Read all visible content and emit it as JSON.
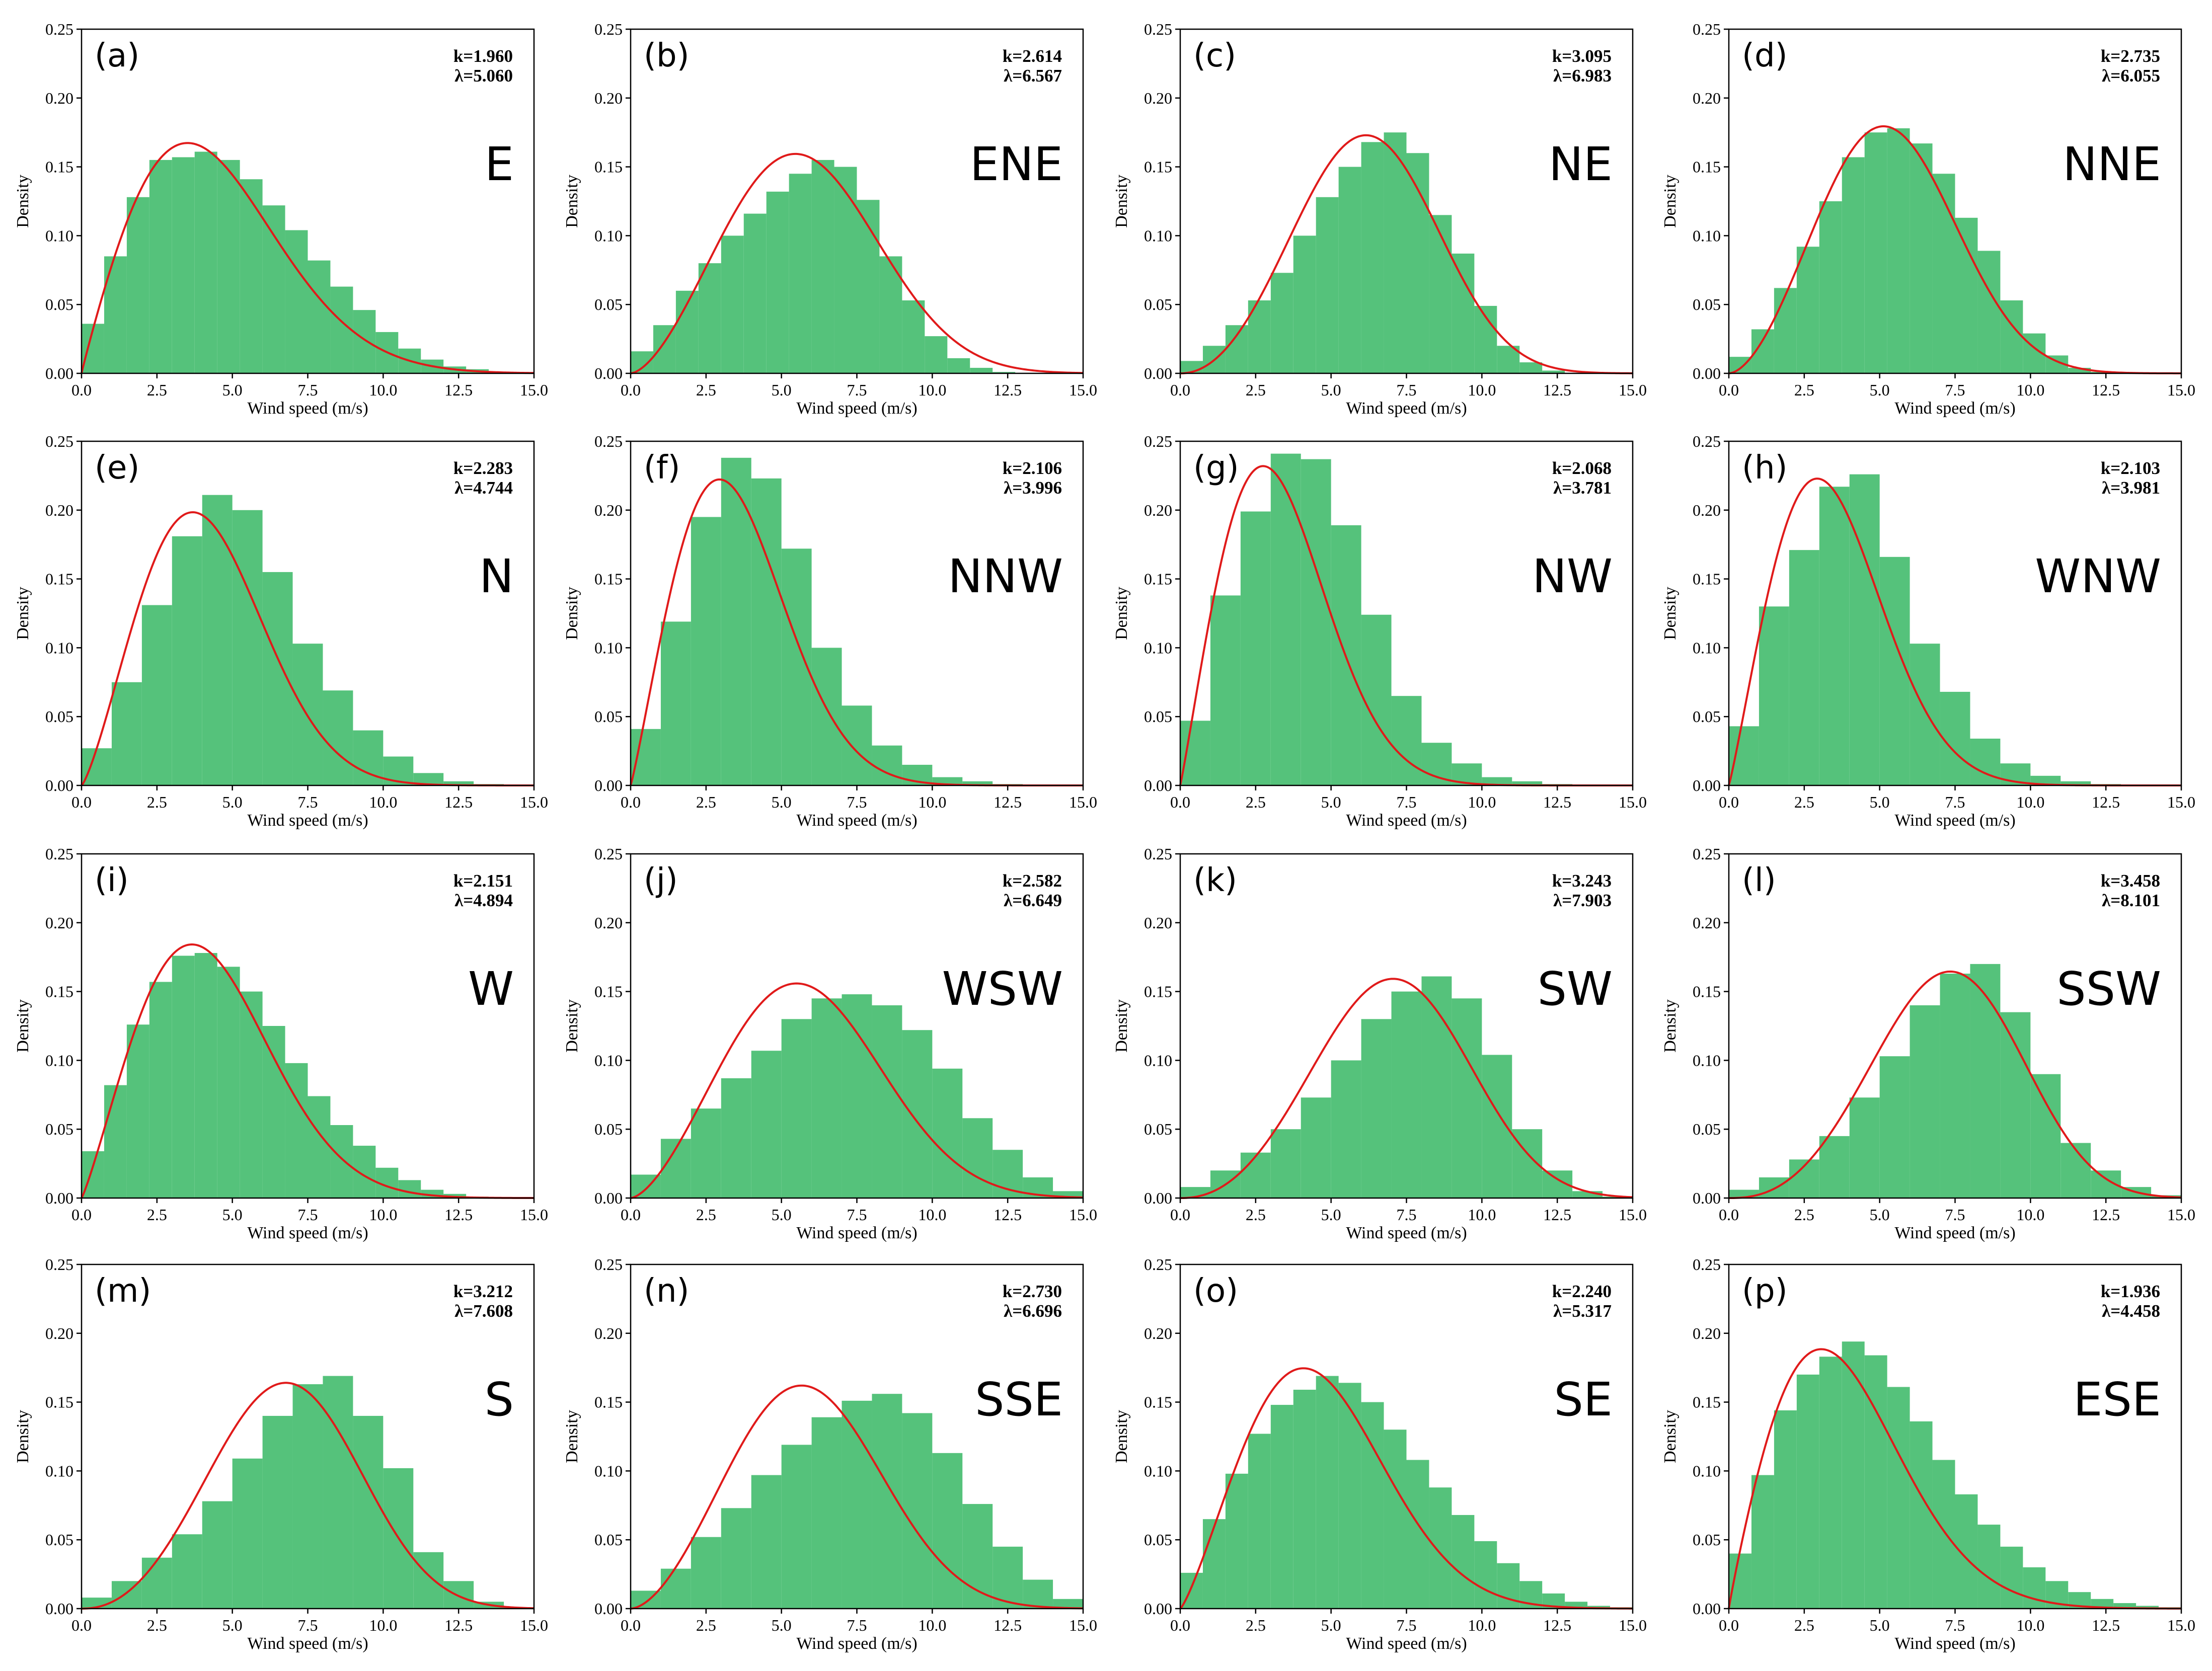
{
  "colors": {
    "bars": "#55c27b",
    "curve": "#e01a1a",
    "axis": "#000000"
  },
  "chart_data": [
    {
      "type": "bar",
      "title": "(a)",
      "direction": "E",
      "k": "k=1.960",
      "lambda": "λ=5.060",
      "xlabel": "Wind speed (m/s)",
      "ylabel": "Density",
      "xlim": [
        0,
        15
      ],
      "ylim": [
        0,
        0.25
      ],
      "xticks": [
        "0.0",
        "2.5",
        "5.0",
        "7.5",
        "10.0",
        "12.5",
        "15.0"
      ],
      "yticks": [
        "0.00",
        "0.05",
        "0.10",
        "0.15",
        "0.20",
        "0.25"
      ],
      "bin_width": 0.75,
      "values": [
        0.036,
        0.085,
        0.128,
        0.155,
        0.157,
        0.161,
        0.155,
        0.141,
        0.122,
        0.104,
        0.082,
        0.063,
        0.046,
        0.03,
        0.018,
        0.01,
        0.005,
        0.003,
        0.001,
        0,
        0
      ],
      "fit": {
        "name": "Weibull",
        "k": 1.96,
        "lambda": 5.06
      }
    },
    {
      "type": "bar",
      "title": "(b)",
      "direction": "ENE",
      "k": "k=2.614",
      "lambda": "λ=6.567",
      "xlabel": "Wind speed (m/s)",
      "ylabel": "Density",
      "xlim": [
        0,
        15
      ],
      "ylim": [
        0,
        0.25
      ],
      "xticks": [
        "0.0",
        "2.5",
        "5.0",
        "7.5",
        "10.0",
        "12.5",
        "15.0"
      ],
      "yticks": [
        "0.00",
        "0.05",
        "0.10",
        "0.15",
        "0.20",
        "0.25"
      ],
      "bin_width": 0.75,
      "values": [
        0.016,
        0.035,
        0.06,
        0.08,
        0.1,
        0.116,
        0.132,
        0.145,
        0.155,
        0.15,
        0.126,
        0.085,
        0.053,
        0.027,
        0.011,
        0.004,
        0.001,
        0,
        0,
        0,
        0
      ],
      "fit": {
        "name": "Weibull",
        "k": 2.614,
        "lambda": 6.567
      }
    },
    {
      "type": "bar",
      "title": "(c)",
      "direction": "NE",
      "k": "k=3.095",
      "lambda": "λ=6.983",
      "xlabel": "Wind speed (m/s)",
      "ylabel": "Density",
      "xlim": [
        0,
        15
      ],
      "ylim": [
        0,
        0.25
      ],
      "xticks": [
        "0.0",
        "2.5",
        "5.0",
        "7.5",
        "10.0",
        "12.5",
        "15.0"
      ],
      "yticks": [
        "0.00",
        "0.05",
        "0.10",
        "0.15",
        "0.20",
        "0.25"
      ],
      "bin_width": 0.75,
      "values": [
        0.009,
        0.02,
        0.035,
        0.053,
        0.073,
        0.1,
        0.128,
        0.15,
        0.168,
        0.175,
        0.16,
        0.115,
        0.087,
        0.049,
        0.02,
        0.008,
        0.002,
        0,
        0,
        0,
        0
      ],
      "fit": {
        "name": "Weibull",
        "k": 3.095,
        "lambda": 6.983
      }
    },
    {
      "type": "bar",
      "title": "(d)",
      "direction": "NNE",
      "k": "k=2.735",
      "lambda": "λ=6.055",
      "xlabel": "Wind speed (m/s)",
      "ylabel": "Density",
      "xlim": [
        0,
        15
      ],
      "ylim": [
        0,
        0.25
      ],
      "xticks": [
        "0.0",
        "2.5",
        "5.0",
        "7.5",
        "10.0",
        "12.5",
        "15.0"
      ],
      "yticks": [
        "0.00",
        "0.05",
        "0.10",
        "0.15",
        "0.20",
        "0.25"
      ],
      "bin_width": 0.75,
      "values": [
        0.012,
        0.032,
        0.062,
        0.092,
        0.125,
        0.157,
        0.175,
        0.178,
        0.167,
        0.145,
        0.113,
        0.089,
        0.053,
        0.029,
        0.013,
        0.004,
        0.001,
        0,
        0,
        0,
        0
      ],
      "fit": {
        "name": "Weibull",
        "k": 2.735,
        "lambda": 6.055
      }
    },
    {
      "type": "bar",
      "title": "(e)",
      "direction": "N",
      "k": "k=2.283",
      "lambda": "λ=4.744",
      "xlabel": "Wind speed (m/s)",
      "ylabel": "Density",
      "xlim": [
        0,
        15
      ],
      "ylim": [
        0,
        0.25
      ],
      "xticks": [
        "0.0",
        "2.5",
        "5.0",
        "7.5",
        "10.0",
        "12.5",
        "15.0"
      ],
      "yticks": [
        "0.00",
        "0.05",
        "0.10",
        "0.15",
        "0.20",
        "0.25"
      ],
      "bin_width": 1.0,
      "values": [
        0.027,
        0.075,
        0.131,
        0.181,
        0.211,
        0.2,
        0.155,
        0.103,
        0.069,
        0.04,
        0.021,
        0.009,
        0.003,
        0.001,
        0,
        0
      ],
      "fit": {
        "name": "Weibull",
        "k": 2.283,
        "lambda": 4.744
      }
    },
    {
      "type": "bar",
      "title": "(f)",
      "direction": "NNW",
      "k": "k=2.106",
      "lambda": "λ=3.996",
      "xlabel": "Wind speed (m/s)",
      "ylabel": "Density",
      "xlim": [
        0,
        15
      ],
      "ylim": [
        0,
        0.25
      ],
      "xticks": [
        "0.0",
        "2.5",
        "5.0",
        "7.5",
        "10.0",
        "12.5",
        "15.0"
      ],
      "yticks": [
        "0.00",
        "0.05",
        "0.10",
        "0.15",
        "0.20",
        "0.25"
      ],
      "bin_width": 1.0,
      "values": [
        0.041,
        0.119,
        0.195,
        0.238,
        0.223,
        0.172,
        0.1,
        0.058,
        0.029,
        0.015,
        0.006,
        0.003,
        0.001,
        0,
        0
      ],
      "fit": {
        "name": "Weibull",
        "k": 2.106,
        "lambda": 3.996
      }
    },
    {
      "type": "bar",
      "title": "(g)",
      "direction": "NW",
      "k": "k=2.068",
      "lambda": "λ=3.781",
      "xlabel": "Wind speed (m/s)",
      "ylabel": "Density",
      "xlim": [
        0,
        15
      ],
      "ylim": [
        0,
        0.25
      ],
      "xticks": [
        "0.0",
        "2.5",
        "5.0",
        "7.5",
        "10.0",
        "12.5",
        "15.0"
      ],
      "yticks": [
        "0.00",
        "0.05",
        "0.10",
        "0.15",
        "0.20",
        "0.25"
      ],
      "bin_width": 1.0,
      "values": [
        0.047,
        0.138,
        0.199,
        0.241,
        0.237,
        0.189,
        0.124,
        0.065,
        0.031,
        0.016,
        0.006,
        0.003,
        0.001,
        0,
        0
      ],
      "fit": {
        "name": "Weibull",
        "k": 2.068,
        "lambda": 3.781
      }
    },
    {
      "type": "bar",
      "title": "(h)",
      "direction": "WNW",
      "k": "k=2.103",
      "lambda": "λ=3.981",
      "xlabel": "Wind speed (m/s)",
      "ylabel": "Density",
      "xlim": [
        0,
        15
      ],
      "ylim": [
        0,
        0.25
      ],
      "xticks": [
        "0.0",
        "2.5",
        "5.0",
        "7.5",
        "10.0",
        "12.5",
        "15.0"
      ],
      "yticks": [
        "0.00",
        "0.05",
        "0.10",
        "0.15",
        "0.20",
        "0.25"
      ],
      "bin_width": 1.0,
      "values": [
        0.043,
        0.13,
        0.171,
        0.217,
        0.226,
        0.166,
        0.103,
        0.068,
        0.034,
        0.016,
        0.007,
        0.003,
        0.001,
        0,
        0
      ],
      "fit": {
        "name": "Weibull",
        "k": 2.103,
        "lambda": 3.981
      }
    },
    {
      "type": "bar",
      "title": "(i)",
      "direction": "W",
      "k": "k=2.151",
      "lambda": "λ=4.894",
      "xlabel": "Wind speed (m/s)",
      "ylabel": "Density",
      "xlim": [
        0,
        15
      ],
      "ylim": [
        0,
        0.25
      ],
      "xticks": [
        "0.0",
        "2.5",
        "5.0",
        "7.5",
        "10.0",
        "12.5",
        "15.0"
      ],
      "yticks": [
        "0.00",
        "0.05",
        "0.10",
        "0.15",
        "0.20",
        "0.25"
      ],
      "bin_width": 0.75,
      "values": [
        0.034,
        0.082,
        0.126,
        0.157,
        0.176,
        0.178,
        0.168,
        0.15,
        0.125,
        0.098,
        0.074,
        0.053,
        0.038,
        0.022,
        0.013,
        0.006,
        0.003,
        0.001,
        0,
        0,
        0
      ],
      "fit": {
        "name": "Weibull",
        "k": 2.151,
        "lambda": 4.894
      }
    },
    {
      "type": "bar",
      "title": "(j)",
      "direction": "WSW",
      "k": "k=2.582",
      "lambda": "λ=6.649",
      "xlabel": "Wind speed (m/s)",
      "ylabel": "Density",
      "xlim": [
        0,
        15
      ],
      "ylim": [
        0,
        0.25
      ],
      "xticks": [
        "0.0",
        "2.5",
        "5.0",
        "7.5",
        "10.0",
        "12.5",
        "15.0"
      ],
      "yticks": [
        "0.00",
        "0.05",
        "0.10",
        "0.15",
        "0.20",
        "0.25"
      ],
      "bin_width": 1.0,
      "values": [
        0.017,
        0.043,
        0.065,
        0.087,
        0.107,
        0.13,
        0.145,
        0.148,
        0.14,
        0.122,
        0.094,
        0.058,
        0.035,
        0.015,
        0.005,
        0
      ],
      "fit": {
        "name": "Weibull",
        "k": 2.582,
        "lambda": 6.649
      }
    },
    {
      "type": "bar",
      "title": "(k)",
      "direction": "SW",
      "k": "k=3.243",
      "lambda": "λ=7.903",
      "xlabel": "Wind speed (m/s)",
      "ylabel": "Density",
      "xlim": [
        0,
        15
      ],
      "ylim": [
        0,
        0.25
      ],
      "xticks": [
        "0.0",
        "2.5",
        "5.0",
        "7.5",
        "10.0",
        "12.5",
        "15.0"
      ],
      "yticks": [
        "0.00",
        "0.05",
        "0.10",
        "0.15",
        "0.20",
        "0.25"
      ],
      "bin_width": 1.0,
      "values": [
        0.008,
        0.02,
        0.033,
        0.05,
        0.073,
        0.1,
        0.13,
        0.15,
        0.161,
        0.145,
        0.104,
        0.05,
        0.02,
        0.005,
        0.001,
        0
      ],
      "fit": {
        "name": "Weibull",
        "k": 3.243,
        "lambda": 7.903
      }
    },
    {
      "type": "bar",
      "title": "(l)",
      "direction": "SSW",
      "k": "k=3.458",
      "lambda": "λ=8.101",
      "xlabel": "Wind speed (m/s)",
      "ylabel": "Density",
      "xlim": [
        0,
        15
      ],
      "ylim": [
        0,
        0.25
      ],
      "xticks": [
        "0.0",
        "2.5",
        "5.0",
        "7.5",
        "10.0",
        "12.5",
        "15.0"
      ],
      "yticks": [
        "0.00",
        "0.05",
        "0.10",
        "0.15",
        "0.20",
        "0.25"
      ],
      "bin_width": 1.0,
      "values": [
        0.006,
        0.015,
        0.028,
        0.045,
        0.073,
        0.103,
        0.14,
        0.163,
        0.17,
        0.135,
        0.09,
        0.04,
        0.02,
        0.008,
        0.002,
        0
      ],
      "fit": {
        "name": "Weibull",
        "k": 3.458,
        "lambda": 8.101
      }
    },
    {
      "type": "bar",
      "title": "(m)",
      "direction": "S",
      "k": "k=3.212",
      "lambda": "λ=7.608",
      "xlabel": "Wind speed (m/s)",
      "ylabel": "Density",
      "xlim": [
        0,
        15
      ],
      "ylim": [
        0,
        0.25
      ],
      "xticks": [
        "0.0",
        "2.5",
        "5.0",
        "7.5",
        "10.0",
        "12.5",
        "15.0"
      ],
      "yticks": [
        "0.00",
        "0.05",
        "0.10",
        "0.15",
        "0.20",
        "0.25"
      ],
      "bin_width": 1.0,
      "values": [
        0.008,
        0.02,
        0.037,
        0.054,
        0.078,
        0.109,
        0.14,
        0.163,
        0.169,
        0.14,
        0.102,
        0.041,
        0.02,
        0.005,
        0.001,
        0
      ],
      "fit": {
        "name": "Weibull",
        "k": 3.212,
        "lambda": 7.608
      }
    },
    {
      "type": "bar",
      "title": "(n)",
      "direction": "SSE",
      "k": "k=2.730",
      "lambda": "λ=6.696",
      "xlabel": "Wind speed (m/s)",
      "ylabel": "Density",
      "xlim": [
        0,
        15
      ],
      "ylim": [
        0,
        0.25
      ],
      "xticks": [
        "0.0",
        "2.5",
        "5.0",
        "7.5",
        "10.0",
        "12.5",
        "15.0"
      ],
      "yticks": [
        "0.00",
        "0.05",
        "0.10",
        "0.15",
        "0.20",
        "0.25"
      ],
      "bin_width": 1.0,
      "values": [
        0.013,
        0.029,
        0.052,
        0.073,
        0.097,
        0.119,
        0.139,
        0.151,
        0.156,
        0.142,
        0.113,
        0.076,
        0.045,
        0.021,
        0.007,
        0.001
      ],
      "fit": {
        "name": "Weibull",
        "k": 2.73,
        "lambda": 6.696
      }
    },
    {
      "type": "bar",
      "title": "(o)",
      "direction": "SE",
      "k": "k=2.240",
      "lambda": "λ=5.317",
      "xlabel": "Wind speed (m/s)",
      "ylabel": "Density",
      "xlim": [
        0,
        15
      ],
      "ylim": [
        0,
        0.25
      ],
      "xticks": [
        "0.0",
        "2.5",
        "5.0",
        "7.5",
        "10.0",
        "12.5",
        "15.0"
      ],
      "yticks": [
        "0.00",
        "0.05",
        "0.10",
        "0.15",
        "0.20",
        "0.25"
      ],
      "bin_width": 0.75,
      "values": [
        0.026,
        0.065,
        0.098,
        0.127,
        0.148,
        0.159,
        0.169,
        0.164,
        0.15,
        0.13,
        0.108,
        0.088,
        0.068,
        0.049,
        0.033,
        0.02,
        0.011,
        0.005,
        0.002,
        0.001,
        0
      ],
      "fit": {
        "name": "Weibull",
        "k": 2.24,
        "lambda": 5.317
      }
    },
    {
      "type": "bar",
      "title": "(p)",
      "direction": "ESE",
      "k": "k=1.936",
      "lambda": "λ=4.458",
      "xlabel": "Wind speed (m/s)",
      "ylabel": "Density",
      "xlim": [
        0,
        15
      ],
      "ylim": [
        0,
        0.25
      ],
      "xticks": [
        "0.0",
        "2.5",
        "5.0",
        "7.5",
        "10.0",
        "12.5",
        "15.0"
      ],
      "yticks": [
        "0.00",
        "0.05",
        "0.10",
        "0.15",
        "0.20",
        "0.25"
      ],
      "bin_width": 0.75,
      "values": [
        0.04,
        0.097,
        0.144,
        0.17,
        0.183,
        0.194,
        0.184,
        0.161,
        0.136,
        0.108,
        0.083,
        0.061,
        0.045,
        0.03,
        0.02,
        0.012,
        0.007,
        0.004,
        0.002,
        0.001,
        0
      ],
      "fit": {
        "name": "Weibull",
        "k": 1.936,
        "lambda": 4.458
      }
    }
  ]
}
